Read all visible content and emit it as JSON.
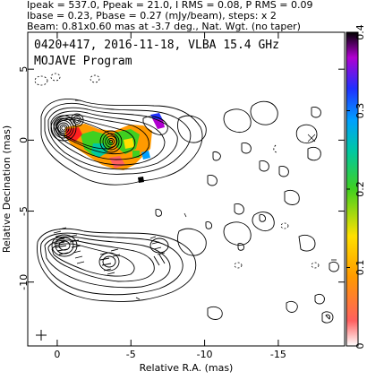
{
  "header": {
    "line1": "Ipeak = 537.0, Ppeak = 21.0, I RMS = 0.08, P RMS = 0.09",
    "line2": "Ibase = 0.23, Pbase = 0.27 (mJy/beam), steps: x 2",
    "line3": "Beam: 0.81x0.60 mas at -3.7 deg., Nat. Wgt. (no taper)"
  },
  "plot_title": {
    "line1": "0420+417, 2016-11-18, VLBA 15.4 GHz",
    "line2": "MOJAVE Program"
  },
  "chart_data": {
    "type": "contour",
    "xlabel": "Relative R.A. (mas)",
    "ylabel": "Relative Decination (mas)",
    "xlim": [
      2,
      -19.5
    ],
    "ylim": [
      -14.5,
      7.6
    ],
    "x_ticks": [
      0,
      -5,
      -10,
      -15
    ],
    "x_tick_labels": [
      "0",
      "-5",
      "-10",
      "-15"
    ],
    "y_ticks": [
      5,
      0,
      -5,
      -10
    ],
    "y_tick_labels": [
      "5",
      "0",
      "-5",
      "-10"
    ],
    "colorbar": {
      "range": [
        0,
        0.4
      ],
      "ticks": [
        0,
        0.1,
        0.2,
        0.3,
        0.4
      ],
      "tick_labels": [
        "0",
        "0.1",
        "0.2",
        "0.3",
        "0.4"
      ]
    },
    "upper_panel": {
      "core": {
        "x": 0,
        "y": 0.1
      },
      "jet_knots": [
        {
          "x": -1.5,
          "y": 0.8
        },
        {
          "x": -3.5,
          "y": -0.9
        },
        {
          "x": -6.0,
          "y": -0.5
        }
      ],
      "blobs": [
        {
          "x": -11.4,
          "y": -0.8
        },
        {
          "x": -12.8,
          "y": -1.2
        },
        {
          "x": -13.4,
          "y": 1.1
        },
        {
          "x": -15.5,
          "y": -0.5
        },
        {
          "x": -17.3,
          "y": 1.5
        },
        {
          "x": -17.5,
          "y": -1.0
        },
        {
          "x": -8.0,
          "y": 1.2
        },
        {
          "x": -10.8,
          "y": 1.5
        },
        {
          "x": -15.2,
          "y": -3.2
        },
        {
          "x": -16.4,
          "y": -4.2
        },
        {
          "x": -9.7,
          "y": -2.5
        },
        {
          "x": -11.0,
          "y": -6.5
        },
        {
          "x": -14.0,
          "y": -5.2
        },
        {
          "x": -9.8,
          "y": -4.1
        }
      ]
    },
    "lower_panel": {
      "core": {
        "x": 0,
        "y": -8.3
      },
      "blobs": [
        {
          "x": -11.4,
          "y": -9.2
        },
        {
          "x": -12.8,
          "y": -9.6
        },
        {
          "x": -15.5,
          "y": -9.0
        },
        {
          "x": -17.4,
          "y": -8.0
        },
        {
          "x": -17.0,
          "y": -10.5
        },
        {
          "x": -14.0,
          "y": -13.5
        },
        {
          "x": -9.8,
          "y": -13.2
        },
        {
          "x": -17.2,
          "y": -13.0
        },
        {
          "x": -18.4,
          "y": -12.2
        }
      ]
    },
    "beam": {
      "major": 0.81,
      "minor": 0.6,
      "pa": -3.7
    }
  }
}
